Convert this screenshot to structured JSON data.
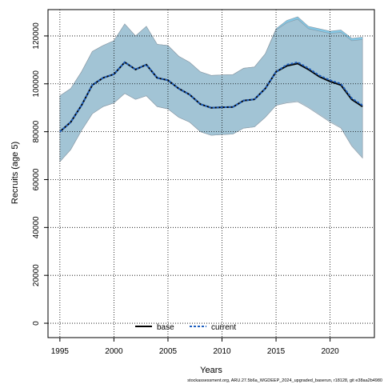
{
  "chart_data": {
    "type": "line",
    "xlabel": "Years",
    "ylabel": "Recruits (age 5)",
    "xlim": [
      1993.9,
      2024.1
    ],
    "ylim": [
      -6000,
      131000
    ],
    "x_ticks": [
      1995,
      2000,
      2005,
      2010,
      2015,
      2020
    ],
    "x_tick_labels": [
      "1995",
      "2000",
      "2005",
      "2010",
      "2015",
      "2020"
    ],
    "y_ticks": [
      0,
      20000,
      40000,
      60000,
      80000,
      100000,
      120000
    ],
    "y_tick_labels": [
      "0",
      "20000",
      "40000",
      "60000",
      "80000",
      "100000",
      "120000"
    ],
    "grid": true,
    "legend_position": "bottom-center",
    "x": [
      1995,
      1996,
      1997,
      1998,
      1999,
      2000,
      2001,
      2002,
      2003,
      2004,
      2005,
      2006,
      2007,
      2008,
      2009,
      2010,
      2011,
      2012,
      2013,
      2014,
      2015,
      2016,
      2017,
      2018,
      2019,
      2020,
      2021,
      2022,
      2023
    ],
    "series": [
      {
        "name": "base",
        "line_style": "solid",
        "color": "#000000",
        "band_color": "#a8c3d2",
        "values": [
          80000,
          84000,
          91000,
          99500,
          102500,
          104000,
          109000,
          106000,
          108000,
          102500,
          101500,
          98000,
          95500,
          91500,
          90000,
          90200,
          90300,
          93000,
          93500,
          98000,
          105000,
          107500,
          108500,
          106000,
          103000,
          101000,
          99500,
          93500,
          90500
        ],
        "lower": [
          67500,
          72500,
          80500,
          87500,
          90500,
          92000,
          96000,
          93500,
          95000,
          90500,
          89500,
          86000,
          84000,
          80000,
          78500,
          78800,
          79000,
          81500,
          82000,
          86000,
          91000,
          92000,
          92500,
          90000,
          87000,
          84000,
          81500,
          74000,
          69000
        ],
        "upper": [
          95000,
          98000,
          105000,
          113500,
          116000,
          118000,
          125000,
          120000,
          124000,
          116500,
          116000,
          111500,
          109000,
          105000,
          103500,
          103700,
          103800,
          106500,
          107000,
          112500,
          122500,
          125500,
          127000,
          123000,
          122000,
          121000,
          121500,
          118000,
          118500
        ]
      },
      {
        "name": "current",
        "line_style": "dashed",
        "color": "#1e5fbf",
        "band_color": "#5ab4dc",
        "values": [
          80000,
          84000,
          91000,
          99500,
          102500,
          104000,
          109000,
          106000,
          108000,
          102500,
          101500,
          98000,
          95500,
          91500,
          90000,
          90200,
          90300,
          93000,
          93500,
          98000,
          105000,
          108000,
          109000,
          106500,
          103500,
          101500,
          100000,
          94000,
          91000
        ],
        "lower": [
          67500,
          72500,
          80500,
          87500,
          90500,
          92000,
          96000,
          93500,
          95000,
          90500,
          89500,
          86000,
          84000,
          80000,
          78500,
          78800,
          79000,
          81500,
          82000,
          86000,
          91000,
          92500,
          93000,
          90500,
          87500,
          84500,
          82000,
          74500,
          69500
        ],
        "upper": [
          95000,
          98000,
          105000,
          113500,
          116000,
          118000,
          125000,
          120000,
          124000,
          116500,
          116000,
          111500,
          109000,
          105000,
          103500,
          103700,
          103800,
          106500,
          107000,
          112500,
          123000,
          126500,
          128000,
          124000,
          123000,
          122000,
          122500,
          119000,
          119500
        ]
      }
    ],
    "footnote": "stockassessment.org, ARU.27.5b6a_WGDEEP_2024_upgraded_baserun, r18128, git e38aa2b4980"
  }
}
